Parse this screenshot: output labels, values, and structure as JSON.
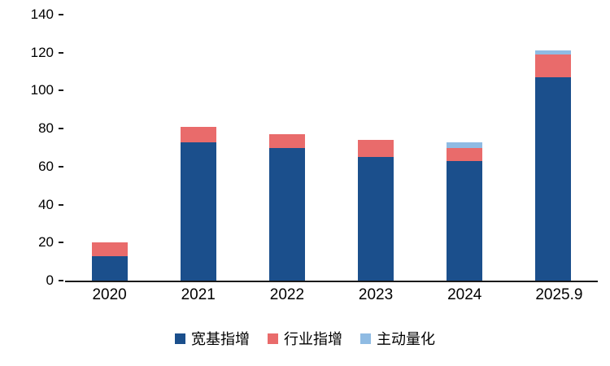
{
  "chart_data": {
    "type": "bar",
    "stacked": true,
    "title": "",
    "xlabel": "",
    "ylabel": "",
    "categories": [
      "2020",
      "2021",
      "2022",
      "2023",
      "2024",
      "2025.9"
    ],
    "series": [
      {
        "name": "宽基指增",
        "color": "#1B4F8C",
        "values": [
          13,
          73,
          70,
          65,
          63,
          107
        ]
      },
      {
        "name": "行业指增",
        "color": "#E96B6B",
        "values": [
          7,
          8,
          7,
          9,
          7,
          12
        ]
      },
      {
        "name": "主动量化",
        "color": "#8FBBE3",
        "values": [
          0,
          0,
          0,
          0,
          3,
          2
        ]
      }
    ],
    "ylim": [
      0,
      140
    ],
    "yticks": [
      0,
      20,
      40,
      60,
      80,
      100,
      120,
      140
    ],
    "grid": false,
    "legend_position": "bottom"
  }
}
